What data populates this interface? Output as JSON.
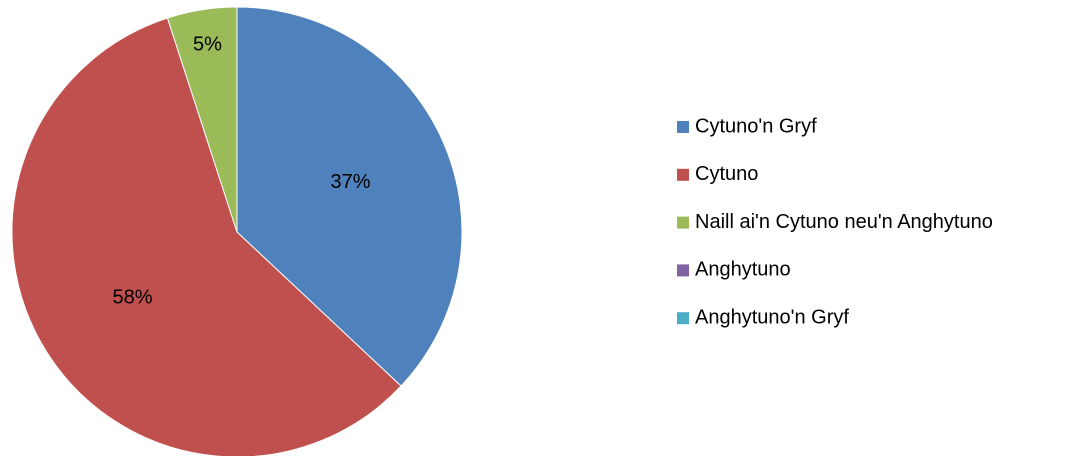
{
  "chart_data": {
    "type": "pie",
    "categories": [
      "Cytuno'n Gryf",
      "Cytuno",
      "Naill ai'n Cytuno neu'n Anghytuno",
      "Anghytuno",
      "Anghytuno'n Gryf"
    ],
    "values": [
      37,
      58,
      5,
      0,
      0
    ],
    "value_labels": [
      "37%",
      "58%",
      "5%",
      null,
      null
    ],
    "colors": [
      "#4f81bd",
      "#c0504d",
      "#9bbb59",
      "#8064a2",
      "#4bacc6"
    ],
    "legend": "right"
  }
}
